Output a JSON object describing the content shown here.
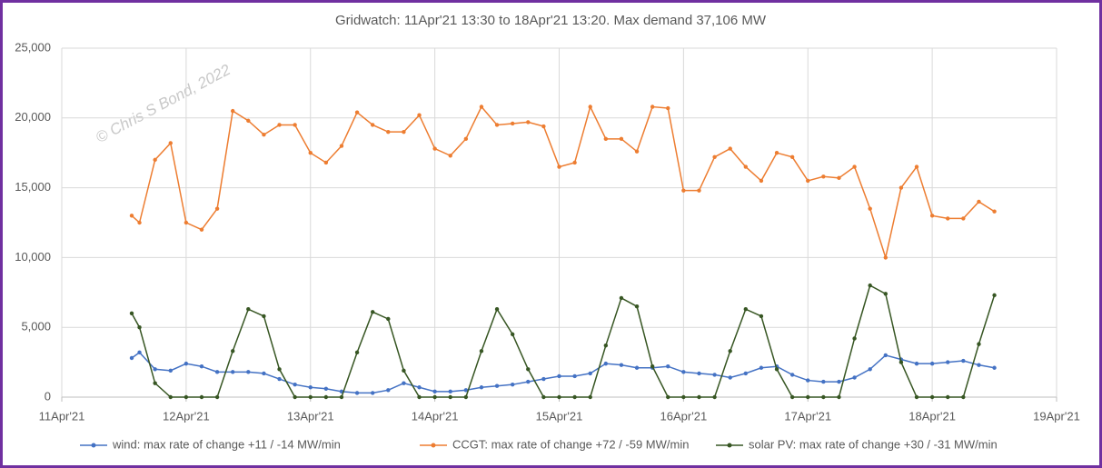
{
  "chart_data": {
    "type": "line",
    "title": "Gridwatch:  11Apr'21 13:30  to 18Apr'21 13:20.   Max demand 37,106 MW",
    "annotation": "© Chris S Bond, 2022",
    "x": [
      11.5625,
      11.625,
      11.75,
      11.875,
      12.0,
      12.125,
      12.25,
      12.375,
      12.5,
      12.625,
      12.75,
      12.875,
      13.0,
      13.125,
      13.25,
      13.375,
      13.5,
      13.625,
      13.75,
      13.875,
      14.0,
      14.125,
      14.25,
      14.375,
      14.5,
      14.625,
      14.75,
      14.875,
      15.0,
      15.125,
      15.25,
      15.375,
      15.5,
      15.625,
      15.75,
      15.875,
      16.0,
      16.125,
      16.25,
      16.375,
      16.5,
      16.625,
      16.75,
      16.875,
      17.0,
      17.125,
      17.25,
      17.375,
      17.5,
      17.625,
      17.75,
      17.875,
      18.0,
      18.125,
      18.25,
      18.375,
      18.5
    ],
    "series": [
      {
        "name": "wind: max rate of change +11 / -14 MW/min",
        "color": "#4472c4",
        "values": [
          2800,
          3200,
          2000,
          1900,
          2400,
          2200,
          1800,
          1800,
          1800,
          1700,
          1300,
          900,
          700,
          600,
          400,
          300,
          300,
          500,
          1000,
          700,
          400,
          400,
          500,
          700,
          800,
          900,
          1100,
          1300,
          1500,
          1500,
          1700,
          2400,
          2300,
          2100,
          2100,
          2200,
          1800,
          1700,
          1600,
          1400,
          1700,
          2100,
          2200,
          1600,
          1200,
          1100,
          1100,
          1400,
          2000,
          3000,
          2700,
          2400,
          2400,
          2500,
          2600,
          2300,
          2100
        ]
      },
      {
        "name": "CCGT: max rate of change +72 / -59 MW/min",
        "color": "#ed7d31",
        "values": [
          13000,
          12500,
          17000,
          18200,
          12500,
          12000,
          13500,
          20500,
          19800,
          18800,
          19500,
          19500,
          17500,
          16800,
          18000,
          20400,
          19500,
          19000,
          19000,
          20200,
          17800,
          17300,
          18500,
          20800,
          19500,
          19600,
          19700,
          19400,
          16500,
          16800,
          20800,
          18500,
          18500,
          17600,
          20800,
          20700,
          14800,
          14800,
          17200,
          17800,
          16500,
          15500,
          17500,
          17200,
          15500,
          15800,
          15700,
          16500,
          13500,
          10000,
          15000,
          16500,
          13000,
          12800,
          12800,
          14000,
          13300
        ]
      },
      {
        "name": "solar PV: max rate of change +30 / -31 MW/min",
        "color": "#375623",
        "values": [
          6000,
          5000,
          1000,
          0,
          0,
          0,
          0,
          3300,
          6300,
          5800,
          2000,
          0,
          0,
          0,
          0,
          3200,
          6100,
          5600,
          1900,
          0,
          0,
          0,
          0,
          3300,
          6300,
          4500,
          2000,
          0,
          0,
          0,
          0,
          3700,
          7100,
          6500,
          2200,
          0,
          0,
          0,
          0,
          3300,
          6300,
          5800,
          2000,
          0,
          0,
          0,
          0,
          4200,
          8000,
          7400,
          2500,
          0,
          0,
          0,
          0,
          3800,
          7300
        ]
      }
    ],
    "xlim": [
      11,
      19
    ],
    "xticks": [
      {
        "value": 11,
        "label": "11Apr'21"
      },
      {
        "value": 12,
        "label": "12Apr'21"
      },
      {
        "value": 13,
        "label": "13Apr'21"
      },
      {
        "value": 14,
        "label": "14Apr'21"
      },
      {
        "value": 15,
        "label": "15Apr'21"
      },
      {
        "value": 16,
        "label": "16Apr'21"
      },
      {
        "value": 17,
        "label": "17Apr'21"
      },
      {
        "value": 18,
        "label": "18Apr'21"
      },
      {
        "value": 19,
        "label": "19Apr'21"
      }
    ],
    "ylim": [
      0,
      25000
    ],
    "yticks": [
      0,
      {
        "value": 5000,
        "label": "5,000"
      },
      {
        "value": 10000,
        "label": "10,000"
      },
      {
        "value": 15000,
        "label": "15,000"
      },
      {
        "value": 20000,
        "label": "20,000"
      },
      {
        "value": 25000,
        "label": "25,000"
      }
    ],
    "grid": true,
    "legend": "bottom"
  }
}
